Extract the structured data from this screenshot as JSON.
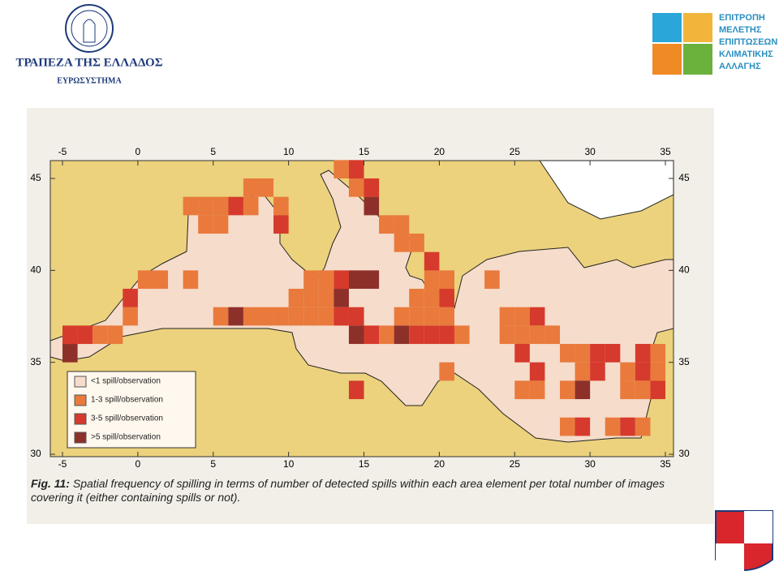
{
  "header": {
    "left_logo": {
      "name": "ΤΡΑΠΕΖΑ ΤΗΣ ΕΛΛΑΔΟΣ",
      "subtitle": "ΕΥΡΩΣΥΣΤΗΜΑ"
    },
    "right_logo": {
      "lines": [
        "ΕΠΙΤΡΟΠΗ",
        "ΜΕΛΕΤΗΣ",
        "ΕΠΙΠΤΩΣΕΩΝ",
        "ΚΛΙΜΑΤΙΚΗΣ",
        "ΑΛΛΑΓΗΣ"
      ]
    }
  },
  "map": {
    "lon_ticks": [
      -5,
      0,
      5,
      10,
      15,
      20,
      25,
      30,
      35
    ],
    "lat_ticks": [
      30,
      35,
      40,
      45
    ],
    "legend": [
      "<1 spill/observation",
      "1-3 spill/observation",
      "3-5 spill/observation",
      ">5 spill/observation"
    ],
    "colors": [
      "#f6dccb",
      "#e97a3c",
      "#d63a2c",
      "#8e302a"
    ],
    "cells": [
      [
        -5,
        36,
        2
      ],
      [
        -5,
        35,
        3
      ],
      [
        -4,
        36,
        2
      ],
      [
        -3,
        36,
        1
      ],
      [
        -2,
        36,
        1
      ],
      [
        -1,
        37,
        1
      ],
      [
        -1,
        38,
        2
      ],
      [
        0,
        39,
        1
      ],
      [
        1,
        39,
        1
      ],
      [
        3,
        39,
        1
      ],
      [
        3,
        43,
        1
      ],
      [
        4,
        43,
        1
      ],
      [
        4,
        42,
        1
      ],
      [
        5,
        42,
        1
      ],
      [
        5,
        43,
        1
      ],
      [
        6,
        43,
        2
      ],
      [
        7,
        43,
        1
      ],
      [
        7,
        44,
        1
      ],
      [
        8,
        44,
        1
      ],
      [
        9,
        43,
        1
      ],
      [
        9,
        42,
        2
      ],
      [
        5,
        37,
        1
      ],
      [
        6,
        37,
        3
      ],
      [
        7,
        37,
        1
      ],
      [
        8,
        37,
        1
      ],
      [
        9,
        37,
        1
      ],
      [
        10,
        37,
        1
      ],
      [
        11,
        37,
        1
      ],
      [
        12,
        37,
        1
      ],
      [
        10,
        38,
        1
      ],
      [
        11,
        38,
        1
      ],
      [
        12,
        38,
        1
      ],
      [
        13,
        38,
        3
      ],
      [
        13,
        39,
        2
      ],
      [
        14,
        39,
        3
      ],
      [
        15,
        39,
        3
      ],
      [
        11,
        39,
        1
      ],
      [
        12,
        39,
        1
      ],
      [
        13,
        37,
        2
      ],
      [
        14,
        36,
        3
      ],
      [
        14,
        37,
        2
      ],
      [
        15,
        36,
        2
      ],
      [
        16,
        36,
        1
      ],
      [
        17,
        36,
        3
      ],
      [
        18,
        36,
        2
      ],
      [
        19,
        36,
        2
      ],
      [
        20,
        36,
        2
      ],
      [
        21,
        36,
        1
      ],
      [
        17,
        37,
        1
      ],
      [
        18,
        37,
        1
      ],
      [
        19,
        37,
        1
      ],
      [
        20,
        37,
        1
      ],
      [
        18,
        38,
        1
      ],
      [
        19,
        38,
        1
      ],
      [
        20,
        38,
        2
      ],
      [
        19,
        39,
        1
      ],
      [
        19,
        40,
        2
      ],
      [
        20,
        39,
        1
      ],
      [
        17,
        41,
        1
      ],
      [
        18,
        41,
        1
      ],
      [
        13,
        45,
        1
      ],
      [
        14,
        45,
        2
      ],
      [
        14,
        44,
        1
      ],
      [
        15,
        44,
        2
      ],
      [
        15,
        43,
        3
      ],
      [
        16,
        42,
        1
      ],
      [
        17,
        42,
        1
      ],
      [
        23,
        39,
        1
      ],
      [
        24,
        37,
        1
      ],
      [
        25,
        37,
        1
      ],
      [
        25,
        36,
        1
      ],
      [
        26,
        37,
        2
      ],
      [
        26,
        36,
        1
      ],
      [
        25,
        35,
        2
      ],
      [
        24,
        36,
        1
      ],
      [
        27,
        36,
        1
      ],
      [
        28,
        35,
        1
      ],
      [
        29,
        35,
        1
      ],
      [
        30,
        35,
        2
      ],
      [
        31,
        35,
        2
      ],
      [
        29,
        34,
        1
      ],
      [
        30,
        34,
        2
      ],
      [
        29,
        33,
        3
      ],
      [
        28,
        33,
        1
      ],
      [
        32,
        34,
        1
      ],
      [
        33,
        34,
        2
      ],
      [
        32,
        33,
        1
      ],
      [
        33,
        33,
        1
      ],
      [
        34,
        34,
        1
      ],
      [
        34,
        33,
        2
      ],
      [
        34,
        35,
        1
      ],
      [
        33,
        35,
        2
      ],
      [
        28,
        31,
        1
      ],
      [
        29,
        31,
        2
      ],
      [
        31,
        31,
        1
      ],
      [
        32,
        31,
        2
      ],
      [
        33,
        31,
        1
      ],
      [
        26,
        34,
        2
      ],
      [
        25,
        33,
        1
      ],
      [
        26,
        33,
        1
      ],
      [
        14,
        33,
        2
      ],
      [
        20,
        34,
        1
      ]
    ]
  },
  "caption": {
    "label": "Fig. 11:",
    "text": "Spatial frequency of spilling in terms of number of detected spills within each area element per total number of images covering it (either containing spills or not)."
  }
}
